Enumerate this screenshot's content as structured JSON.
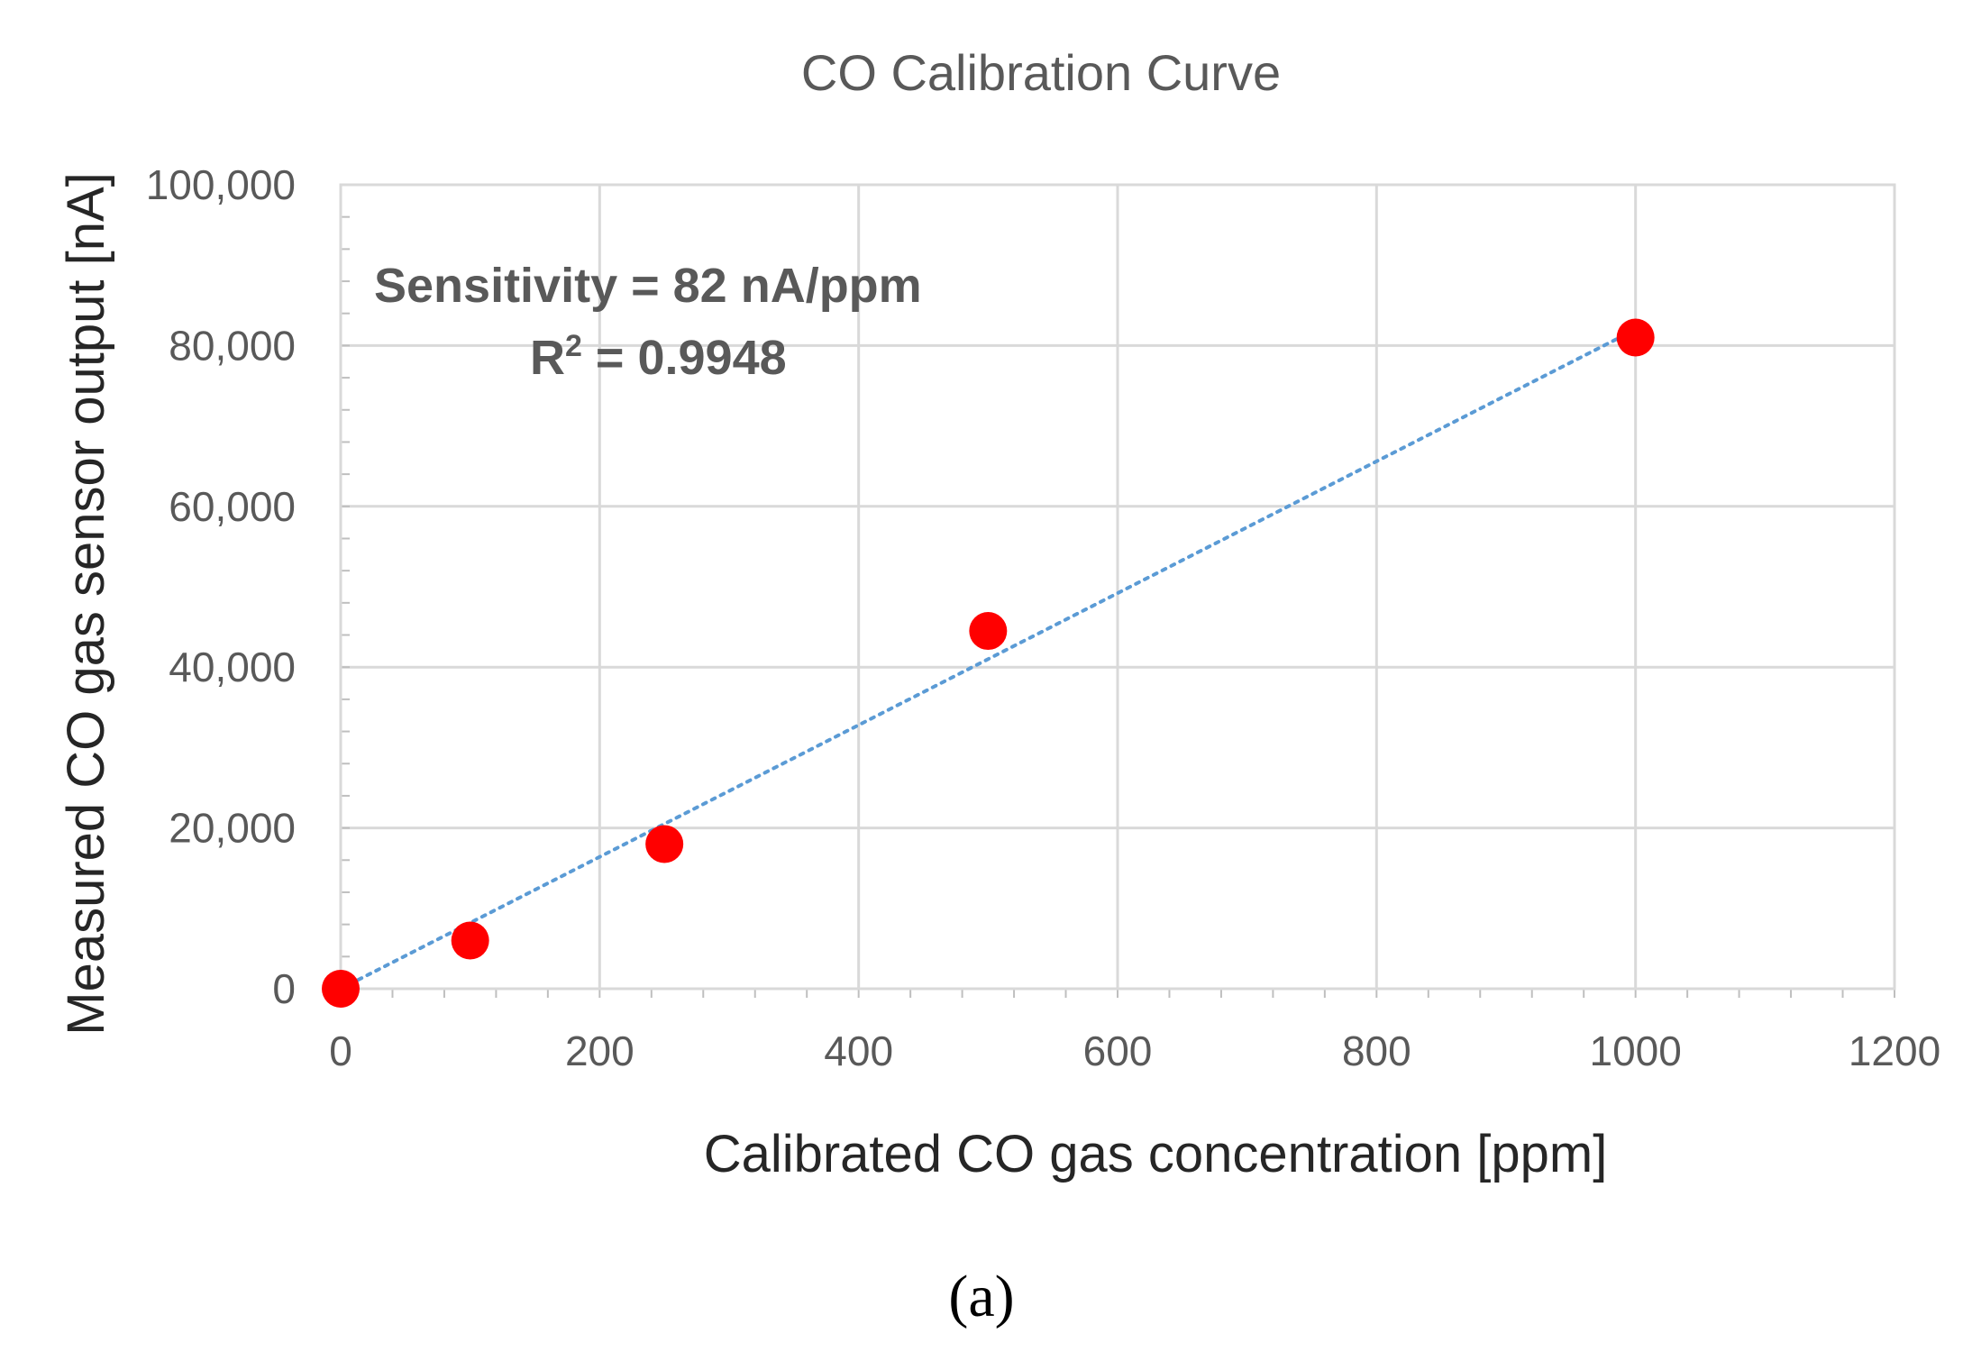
{
  "chart_data": {
    "type": "scatter",
    "title": "CO Calibration Curve",
    "xlabel": "Calibrated CO gas concentration [ppm]",
    "ylabel": "Measured CO gas sensor output [nA]",
    "xlim": [
      0,
      1200
    ],
    "ylim": [
      0,
      100000
    ],
    "x_ticks": [
      "0",
      "200",
      "400",
      "600",
      "800",
      "1000",
      "1200"
    ],
    "y_ticks": [
      "0",
      "20,000",
      "40,000",
      "60,000",
      "80,000",
      "100,000"
    ],
    "grid": true,
    "series": [
      {
        "name": "Measured",
        "color": "#ff0000",
        "x": [
          0,
          100,
          250,
          500,
          1000
        ],
        "y": [
          0,
          6000,
          18000,
          44500,
          81000
        ]
      }
    ],
    "trendline": {
      "style": "dotted",
      "color": "#5b9bd5",
      "x": [
        0,
        1000
      ],
      "y": [
        0,
        82000
      ]
    },
    "annotations": {
      "sensitivity": "Sensitivity = 82 nA/ppm",
      "r2_prefix": "R",
      "r2_sup": "2",
      "r2_value": " = 0.9948"
    },
    "panel_label": "(a)"
  }
}
